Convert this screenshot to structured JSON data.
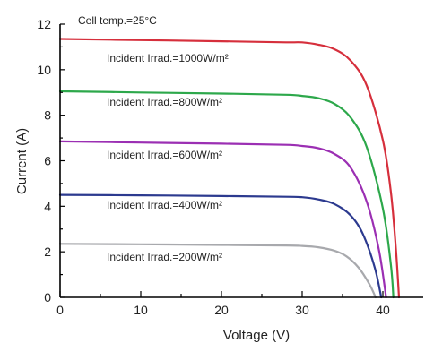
{
  "chart_data": {
    "type": "line",
    "title": "",
    "xlabel": "Voltage (V)",
    "ylabel": "Current (A)",
    "xlim": [
      0,
      45
    ],
    "ylim": [
      0,
      12
    ],
    "xticks": [
      0,
      10,
      20,
      30,
      40
    ],
    "yticks": [
      0,
      2,
      4,
      6,
      8,
      10,
      12
    ],
    "grid": false,
    "legend": "none",
    "annotations": [
      {
        "text": "Cell temp.=25°C"
      },
      {
        "text": "Incident Irrad.=1000W/m²"
      },
      {
        "text": "Incident Irrad.=800W/m²"
      },
      {
        "text": "Incident Irrad.=600W/m²"
      },
      {
        "text": "Incident Irrad.=400W/m²"
      },
      {
        "text": "Incident Irrad.=200W/m²"
      }
    ],
    "series": [
      {
        "color": "#d62f3c",
        "x": [
          0,
          10,
          20,
          28,
          30,
          32,
          34,
          36,
          38,
          40,
          41,
          41.6,
          42
        ],
        "y": [
          11.35,
          11.3,
          11.25,
          11.2,
          11.2,
          11.1,
          10.9,
          10.4,
          9.3,
          6.9,
          4.6,
          2.2,
          0
        ]
      },
      {
        "color": "#2da84b",
        "x": [
          0,
          10,
          20,
          28,
          30,
          32,
          34,
          36,
          38,
          40,
          41,
          41.3
        ],
        "y": [
          9.05,
          9.0,
          8.95,
          8.9,
          8.85,
          8.75,
          8.5,
          7.9,
          6.6,
          3.9,
          1.4,
          0
        ]
      },
      {
        "color": "#9b2fb3",
        "x": [
          0,
          10,
          20,
          28,
          30,
          32,
          34,
          36,
          38,
          39.5,
          40.4
        ],
        "y": [
          6.85,
          6.8,
          6.75,
          6.7,
          6.65,
          6.55,
          6.3,
          5.7,
          4.2,
          2.1,
          0
        ]
      },
      {
        "color": "#2c3a8f",
        "x": [
          0,
          10,
          20,
          28,
          30,
          32,
          34,
          36,
          37.5,
          39,
          39.8
        ],
        "y": [
          4.5,
          4.48,
          4.45,
          4.42,
          4.4,
          4.3,
          4.1,
          3.6,
          2.8,
          1.3,
          0
        ]
      },
      {
        "color": "#a8a9ad",
        "x": [
          0,
          10,
          20,
          28,
          30,
          32,
          34,
          35.5,
          37,
          38.3,
          39.1
        ],
        "y": [
          2.35,
          2.33,
          2.3,
          2.28,
          2.26,
          2.2,
          2.05,
          1.8,
          1.3,
          0.6,
          0
        ]
      }
    ]
  }
}
